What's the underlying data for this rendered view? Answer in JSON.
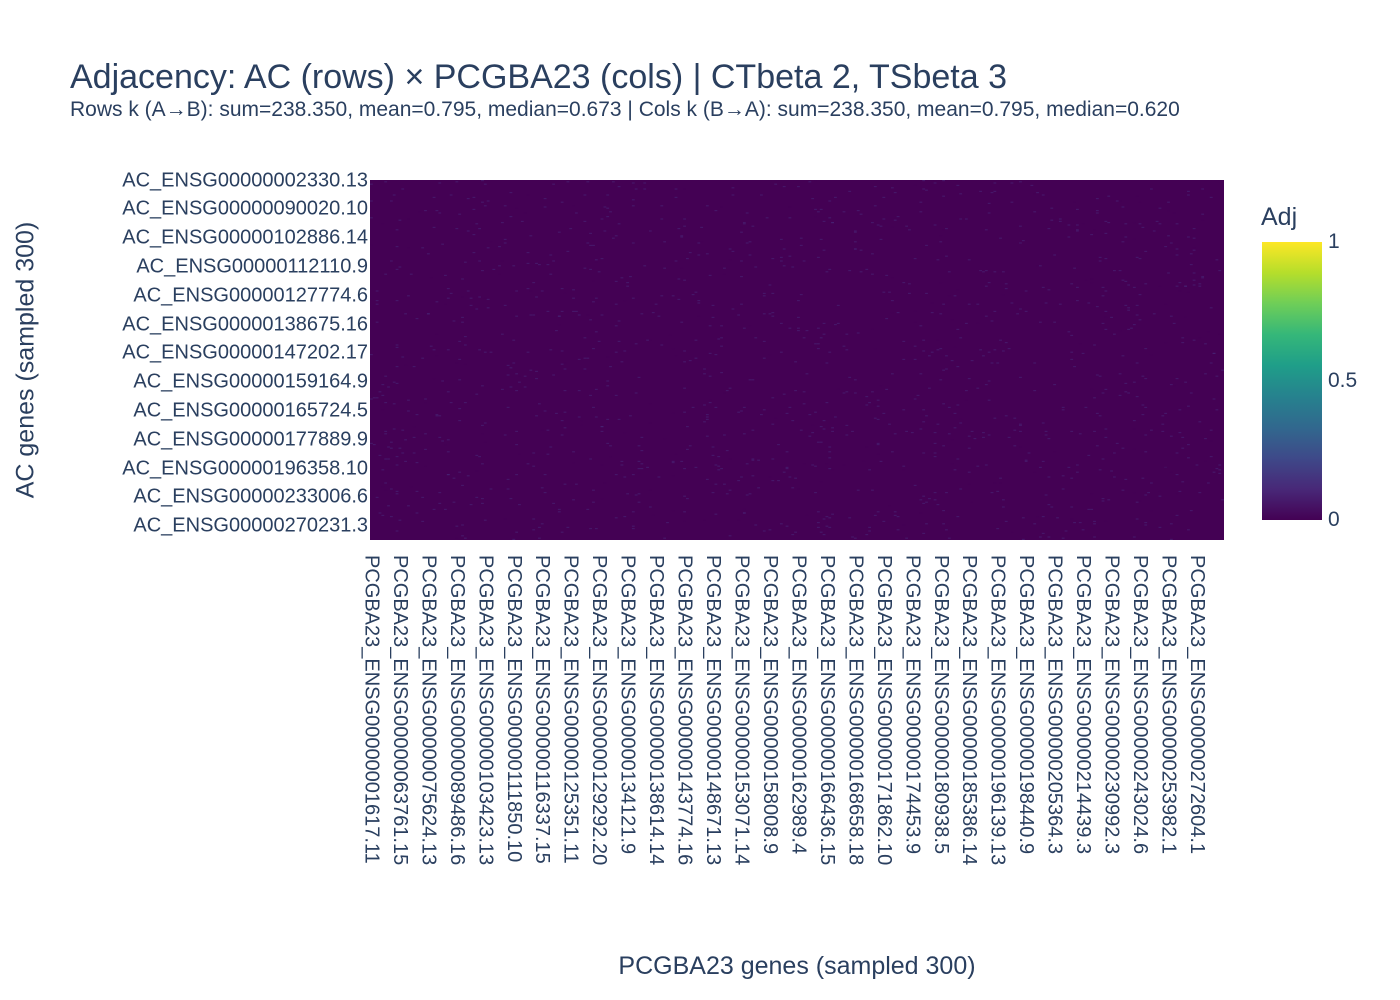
{
  "chart_data": {
    "type": "heatmap",
    "title": "Adjacency: AC (rows) × PCGBA23 (cols) | CTbeta 2, TSbeta 3",
    "subtitle": "Rows k (A→B): sum=238.350, mean=0.795, median=0.673 | Cols k (B→A): sum=238.350, mean=0.795, median=0.620",
    "xlabel": "PCGBA23 genes (sampled 300)",
    "ylabel": "AC genes (sampled 300)",
    "n_rows": 300,
    "n_cols": 300,
    "zlim": [
      0,
      1
    ],
    "value_summary": "nearly all cells ≈ 0; sparse faint values",
    "y_tick_labels": [
      "AC_ENSG00000002330.13",
      "AC_ENSG00000090020.10",
      "AC_ENSG00000102886.14",
      "AC_ENSG00000112110.9",
      "AC_ENSG00000127774.6",
      "AC_ENSG00000138675.16",
      "AC_ENSG00000147202.17",
      "AC_ENSG00000159164.9",
      "AC_ENSG00000165724.5",
      "AC_ENSG00000177889.9",
      "AC_ENSG00000196358.10",
      "AC_ENSG00000233006.6",
      "AC_ENSG00000270231.3"
    ],
    "x_tick_labels": [
      "PCGBA23_ENSG00000001617.11",
      "PCGBA23_ENSG00000063761.15",
      "PCGBA23_ENSG00000075624.13",
      "PCGBA23_ENSG00000089486.16",
      "PCGBA23_ENSG00000103423.13",
      "PCGBA23_ENSG00000111850.10",
      "PCGBA23_ENSG00000116337.15",
      "PCGBA23_ENSG00000125351.11",
      "PCGBA23_ENSG00000129292.20",
      "PCGBA23_ENSG00000134121.9",
      "PCGBA23_ENSG00000138614.14",
      "PCGBA23_ENSG00000143774.16",
      "PCGBA23_ENSG00000148671.13",
      "PCGBA23_ENSG00000153071.14",
      "PCGBA23_ENSG00000158008.9",
      "PCGBA23_ENSG00000162989.4",
      "PCGBA23_ENSG00000166436.15",
      "PCGBA23_ENSG00000168658.18",
      "PCGBA23_ENSG00000171862.10",
      "PCGBA23_ENSG00000174453.9",
      "PCGBA23_ENSG00000180938.5",
      "PCGBA23_ENSG00000185386.14",
      "PCGBA23_ENSG00000196139.13",
      "PCGBA23_ENSG00000198440.9",
      "PCGBA23_ENSG00000205364.3",
      "PCGBA23_ENSG00000214439.3",
      "PCGBA23_ENSG00000230992.3",
      "PCGBA23_ENSG00000243024.6",
      "PCGBA23_ENSG00000253982.1",
      "PCGBA23_ENSG00000272604.1"
    ],
    "colorbar": {
      "title": "Adj",
      "tick_labels": [
        "1",
        "0.5",
        "0"
      ],
      "tick_values": [
        1,
        0.5,
        0
      ],
      "colorscale": "Viridis",
      "colors": [
        "#440154",
        "#482878",
        "#3e4989",
        "#31688e",
        "#26828e",
        "#1f9e89",
        "#35b779",
        "#6ece58",
        "#b5de2b",
        "#fde725"
      ]
    }
  }
}
